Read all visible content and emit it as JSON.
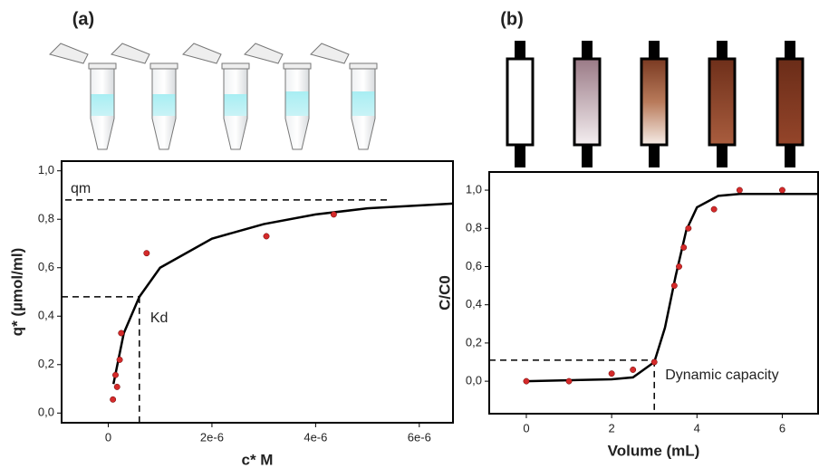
{
  "chart_data": [
    {
      "type": "scatter",
      "title": "(a)",
      "x_label": "c* M",
      "y_label": "q* (µmol/ml)",
      "xlim": [
        -9e-07,
        6.65e-06
      ],
      "ylim": [
        -0.04,
        1.04
      ],
      "xticks": [
        0,
        {
          "value": 2e-06,
          "label": "2e-6"
        },
        {
          "value": 4e-06,
          "label": "4e-6"
        },
        {
          "value": 6e-06,
          "label": "6e-6"
        }
      ],
      "yticks": [
        {
          "value": 0,
          "label": "0,0"
        },
        {
          "value": 0.2,
          "label": "0,2"
        },
        {
          "value": 0.4,
          "label": "0,4"
        },
        {
          "value": 0.6,
          "label": "0,6"
        },
        {
          "value": 0.8,
          "label": "0,8"
        },
        {
          "value": 1,
          "label": "1,0"
        }
      ],
      "points": {
        "color": "#d42a2a",
        "x": [
          9e-08,
          1.4e-07,
          1.7e-07,
          2.2e-07,
          2.5e-07,
          7.4e-07,
          3.05e-06,
          4.35e-06
        ],
        "y": [
          0.056,
          0.157,
          0.108,
          0.22,
          0.33,
          0.66,
          0.73,
          0.82
        ]
      },
      "curve": {
        "color": "#000000",
        "x": [
          1e-07,
          3e-07,
          6e-07,
          1e-06,
          2e-06,
          3e-06,
          4e-06,
          5e-06,
          6.65e-06
        ],
        "y": [
          0.12,
          0.33,
          0.48,
          0.6,
          0.72,
          0.78,
          0.82,
          0.845,
          0.865
        ]
      },
      "annotations": [
        {
          "text": "qm",
          "y": 0.88
        },
        {
          "text": "Kd",
          "x": 6e-07,
          "y": 0.48
        }
      ]
    },
    {
      "type": "scatter",
      "title": "(b)",
      "x_label": "Volume (mL)",
      "y_label": "C/C0",
      "xlim": [
        -0.87,
        6.84
      ],
      "ylim": [
        -0.17,
        1.095
      ],
      "xticks": [
        0,
        2,
        4,
        6
      ],
      "yticks": [
        {
          "value": 0,
          "label": "0,0"
        },
        {
          "value": 0.2,
          "label": "0,2"
        },
        {
          "value": 0.4,
          "label": "0,4"
        },
        {
          "value": 0.6,
          "label": "0,6"
        },
        {
          "value": 0.8,
          "label": "0,8"
        },
        {
          "value": 1,
          "label": "1,0"
        }
      ],
      "points": {
        "color": "#d42a2a",
        "x": [
          0,
          1,
          2,
          2.5,
          3,
          3.47,
          3.58,
          3.69,
          3.8,
          4.4,
          5,
          6
        ],
        "y": [
          0,
          0,
          0.04,
          0.06,
          0.1,
          0.5,
          0.6,
          0.7,
          0.8,
          0.9,
          1,
          1
        ]
      },
      "curve": {
        "color": "#000000",
        "x": [
          0,
          2,
          2.5,
          3,
          3.25,
          3.5,
          3.75,
          4,
          4.5,
          5,
          6.84
        ],
        "y": [
          0,
          0.01,
          0.02,
          0.1,
          0.28,
          0.55,
          0.79,
          0.91,
          0.97,
          0.98,
          0.98
        ]
      },
      "annotations": [
        {
          "text": "Dynamic capacity",
          "x": 3,
          "y": 0.11
        }
      ]
    }
  ]
}
